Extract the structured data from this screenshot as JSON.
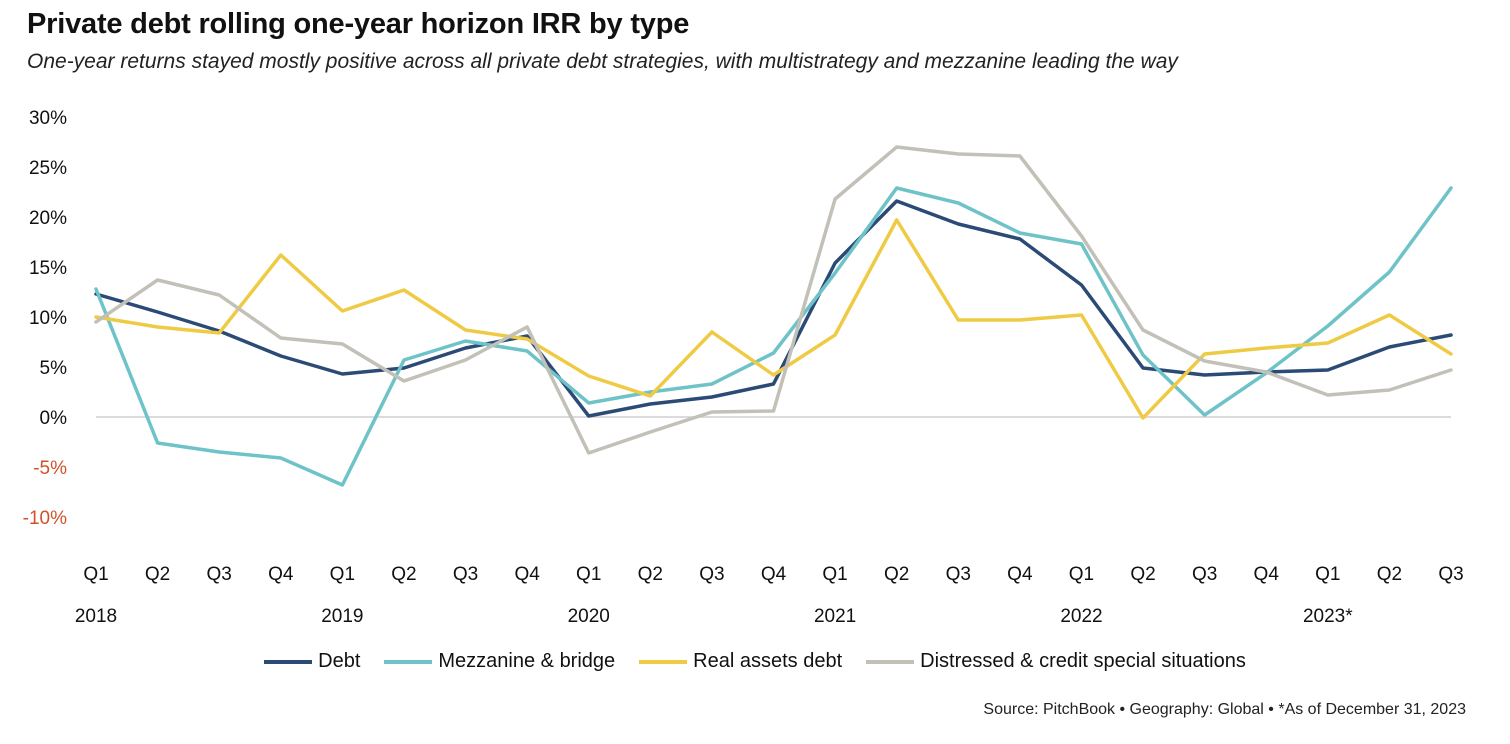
{
  "title": "Private debt rolling one-year horizon IRR by type",
  "subtitle": "One-year returns stayed mostly positive across all private debt strategies, with multistrategy and mezzanine leading the way",
  "source": "Source: PitchBook • Geography: Global • *As of December 31, 2023",
  "colors": {
    "debt": "#2b4a75",
    "mezzanine": "#6ec3c9",
    "real_assets": "#efcb45",
    "distressed": "#c3c0b8",
    "zero_line": "#cfcfcf",
    "negative_tick": "#d1522a"
  },
  "chart_data": {
    "type": "line",
    "title": "Private debt rolling one-year horizon IRR by type",
    "xlabel": "",
    "ylabel": "",
    "ylim": [
      -10,
      30
    ],
    "y_ticks": [
      "30%",
      "25%",
      "20%",
      "15%",
      "10%",
      "5%",
      "0%",
      "-5%",
      "-10%"
    ],
    "y_tick_values": [
      30,
      25,
      20,
      15,
      10,
      5,
      0,
      -5,
      -10
    ],
    "categories": [
      "Q1",
      "Q2",
      "Q3",
      "Q4",
      "Q1",
      "Q2",
      "Q3",
      "Q4",
      "Q1",
      "Q2",
      "Q3",
      "Q4",
      "Q1",
      "Q2",
      "Q3",
      "Q4",
      "Q1",
      "Q2",
      "Q3",
      "Q4",
      "Q1",
      "Q2",
      "Q3"
    ],
    "years": [
      {
        "label": "2018",
        "index": 0
      },
      {
        "label": "2019",
        "index": 4
      },
      {
        "label": "2020",
        "index": 8
      },
      {
        "label": "2021",
        "index": 12
      },
      {
        "label": "2022",
        "index": 16
      },
      {
        "label": "2023*",
        "index": 20
      }
    ],
    "grid": false,
    "legend_position": "bottom",
    "series": [
      {
        "name": "Debt",
        "color": "#2b4a75",
        "values": [
          12.3,
          10.5,
          8.6,
          6.1,
          4.3,
          4.9,
          6.9,
          8.1,
          0.1,
          1.3,
          2.0,
          3.3,
          15.4,
          21.6,
          19.3,
          17.8,
          13.2,
          4.9,
          4.2,
          4.5,
          4.7,
          7.0,
          8.2
        ]
      },
      {
        "name": "Mezzanine & bridge",
        "color": "#6ec3c9",
        "values": [
          12.8,
          -2.6,
          -3.5,
          -4.1,
          -6.8,
          5.7,
          7.6,
          6.6,
          1.4,
          2.5,
          3.3,
          6.4,
          14.4,
          22.9,
          21.4,
          18.4,
          17.3,
          6.2,
          0.2,
          4.4,
          9.1,
          14.5,
          22.9
        ]
      },
      {
        "name": "Real assets debt",
        "color": "#efcb45",
        "values": [
          10.0,
          9.0,
          8.4,
          16.2,
          10.6,
          12.7,
          8.7,
          7.8,
          4.1,
          2.1,
          8.5,
          4.2,
          8.2,
          19.7,
          9.7,
          9.7,
          10.2,
          -0.1,
          6.3,
          6.9,
          7.4,
          10.2,
          6.3
        ]
      },
      {
        "name": "Distressed & credit special situations",
        "color": "#c3c0b8",
        "values": [
          9.5,
          13.7,
          12.2,
          7.9,
          7.3,
          3.6,
          5.7,
          9.0,
          -3.6,
          -1.5,
          0.5,
          0.6,
          21.8,
          27.0,
          26.3,
          26.1,
          18.1,
          8.7,
          5.6,
          4.5,
          2.2,
          2.7,
          4.7
        ]
      }
    ]
  }
}
